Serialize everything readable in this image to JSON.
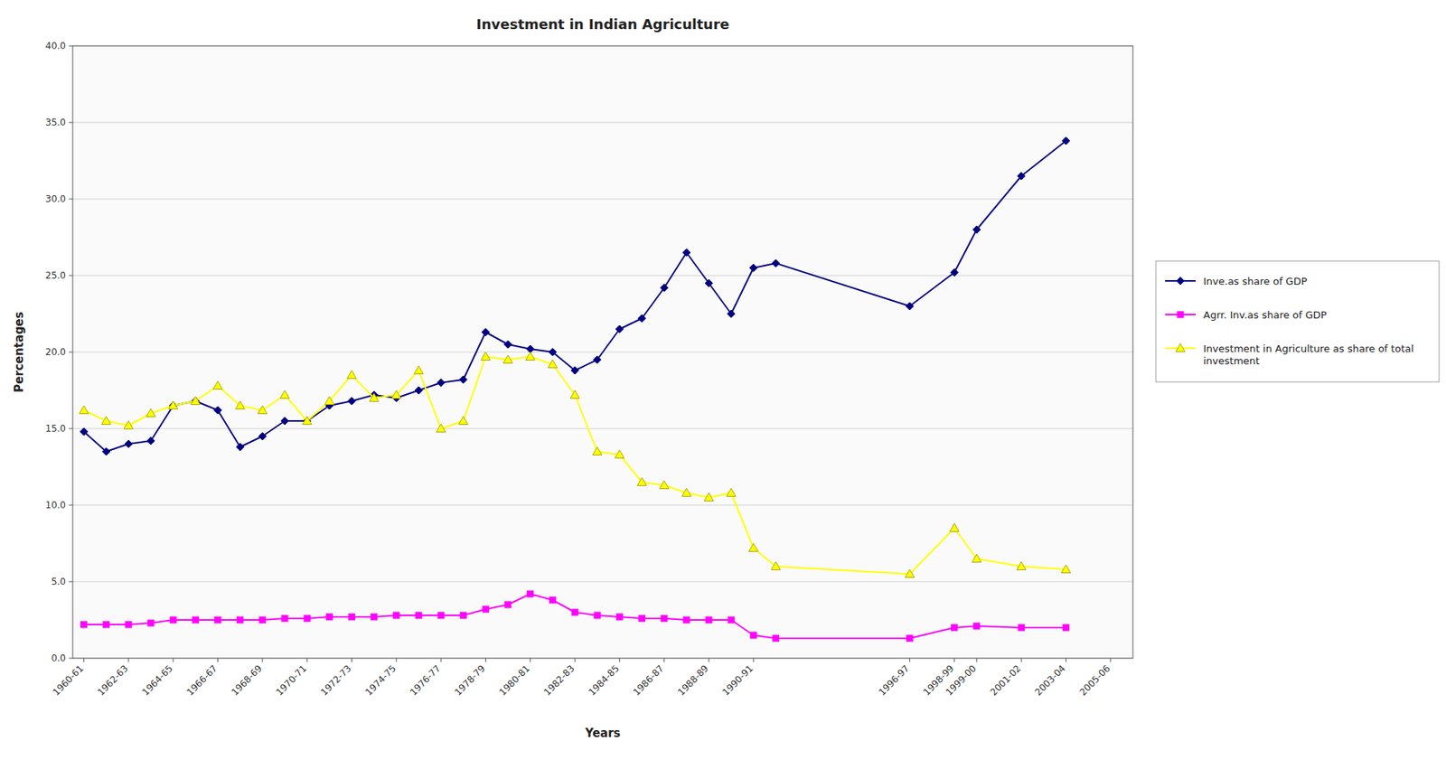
{
  "chart_data": {
    "type": "line",
    "title": "Investment in Indian Agriculture",
    "x_label": "Years",
    "y_label": "Percentages",
    "x": [
      0,
      1,
      2,
      3,
      4,
      5,
      6,
      7,
      8,
      9,
      10,
      11,
      12,
      13,
      14,
      15,
      16,
      17,
      18,
      19,
      20,
      21,
      22,
      23,
      24,
      25,
      26,
      27,
      28,
      29,
      30,
      31,
      37,
      39,
      40,
      42,
      44
    ],
    "xlim": [
      -0.5,
      47
    ],
    "xticks": [
      {
        "value": 0,
        "label": "1960-61"
      },
      {
        "value": 2,
        "label": "1962-63"
      },
      {
        "value": 4,
        "label": "1964-65"
      },
      {
        "value": 6,
        "label": "1966-67"
      },
      {
        "value": 8,
        "label": "1968-69"
      },
      {
        "value": 10,
        "label": "1970-71"
      },
      {
        "value": 12,
        "label": "1972-73"
      },
      {
        "value": 14,
        "label": "1974-75"
      },
      {
        "value": 16,
        "label": "1976-77"
      },
      {
        "value": 18,
        "label": "1978-79"
      },
      {
        "value": 20,
        "label": "1980-81"
      },
      {
        "value": 22,
        "label": "1982-83"
      },
      {
        "value": 24,
        "label": "1984-85"
      },
      {
        "value": 26,
        "label": "1986-87"
      },
      {
        "value": 28,
        "label": "1988-89"
      },
      {
        "value": 30,
        "label": "1990-91"
      },
      {
        "value": 37,
        "label": "1996-97"
      },
      {
        "value": 39,
        "label": "1998-99"
      },
      {
        "value": 40,
        "label": "1999-00"
      },
      {
        "value": 42,
        "label": "2001-02"
      },
      {
        "value": 44,
        "label": "2003-04"
      },
      {
        "value": 46,
        "label": "2005-06"
      }
    ],
    "ylim": [
      0.0,
      40.0
    ],
    "yticks": [
      {
        "value": 0,
        "label": "0.0"
      },
      {
        "value": 5,
        "label": "5.0"
      },
      {
        "value": 10,
        "label": "10.0"
      },
      {
        "value": 15,
        "label": "15.0"
      },
      {
        "value": 20,
        "label": "20.0"
      },
      {
        "value": 25,
        "label": "25.0"
      },
      {
        "value": 30,
        "label": "30.0"
      },
      {
        "value": 35,
        "label": "35.0"
      },
      {
        "value": 40,
        "label": "40.0"
      }
    ],
    "grid": true,
    "legend": "right",
    "series": [
      {
        "name": "Inve.as share of GDP",
        "color": "#000080",
        "marker": "diamond",
        "values": [
          14.8,
          13.5,
          14.0,
          14.2,
          16.5,
          16.8,
          16.2,
          13.8,
          14.5,
          15.5,
          15.5,
          16.5,
          16.8,
          17.2,
          17.0,
          17.5,
          18.0,
          18.2,
          21.3,
          20.5,
          20.2,
          20.0,
          18.8,
          19.5,
          21.5,
          22.2,
          24.2,
          26.5,
          24.5,
          22.5,
          25.5,
          25.8,
          23.0,
          25.2,
          28.0,
          31.5,
          33.8
        ]
      },
      {
        "name": "Agrr. Inv.as share of GDP",
        "color": "#ff00ff",
        "marker": "square",
        "values": [
          2.2,
          2.2,
          2.2,
          2.3,
          2.5,
          2.5,
          2.5,
          2.5,
          2.5,
          2.6,
          2.6,
          2.7,
          2.7,
          2.7,
          2.8,
          2.8,
          2.8,
          2.8,
          3.2,
          3.5,
          4.2,
          3.8,
          3.0,
          2.8,
          2.7,
          2.6,
          2.6,
          2.5,
          2.5,
          2.5,
          1.5,
          1.3,
          1.3,
          2.0,
          2.1,
          2.0,
          2.0
        ]
      },
      {
        "name": "Investment in Agriculture as share of total\ninvestment",
        "color": "#ffff00",
        "marker": "triangle",
        "values": [
          16.2,
          15.5,
          15.2,
          16.0,
          16.5,
          16.8,
          17.8,
          16.5,
          16.2,
          17.2,
          15.5,
          16.8,
          18.5,
          17.0,
          17.2,
          18.8,
          15.0,
          15.5,
          19.7,
          19.5,
          19.7,
          19.2,
          17.2,
          13.5,
          13.3,
          11.5,
          11.3,
          10.8,
          10.5,
          10.8,
          7.2,
          6.0,
          5.5,
          8.5,
          6.5,
          6.0,
          5.8
        ]
      }
    ]
  }
}
